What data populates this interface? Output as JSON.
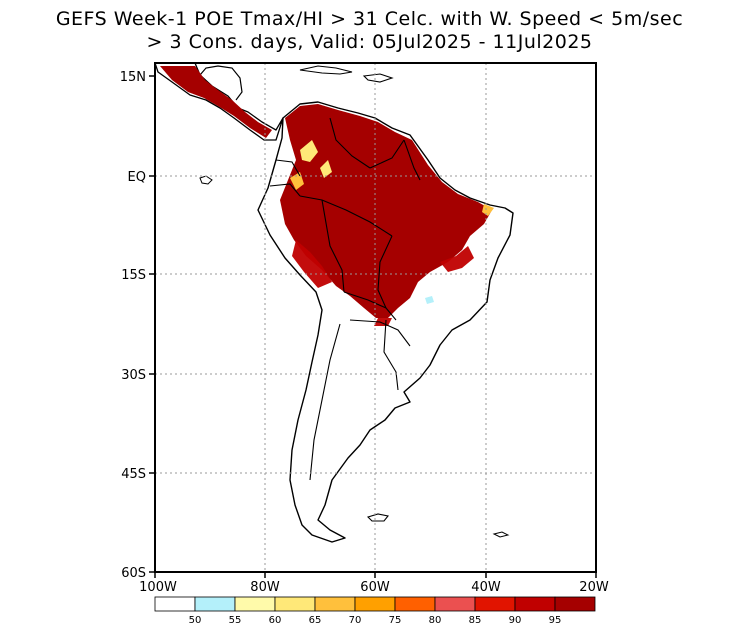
{
  "title": {
    "line1": "GEFS Week-1 POE Tmax/HI > 31 Celc. with W. Speed < 5m/sec",
    "line2": "> 3 Cons. days, Valid: 05Jul2025 - 11Jul2025"
  },
  "axes": {
    "lat_labels": [
      "15N",
      "EQ",
      "15S",
      "30S",
      "45S",
      "60S"
    ],
    "lon_labels": [
      "100W",
      "80W",
      "60W",
      "40W",
      "20W"
    ]
  },
  "colorbar": {
    "colors": [
      "#ffffff",
      "#b4f0fa",
      "#fffaaa",
      "#ffe878",
      "#ffc03c",
      "#ffa000",
      "#ff6000",
      "#eb5050",
      "#e11400",
      "#c00000",
      "#a50000"
    ],
    "labels": [
      "50",
      "55",
      "60",
      "65",
      "70",
      "75",
      "80",
      "85",
      "90",
      "95"
    ]
  }
}
